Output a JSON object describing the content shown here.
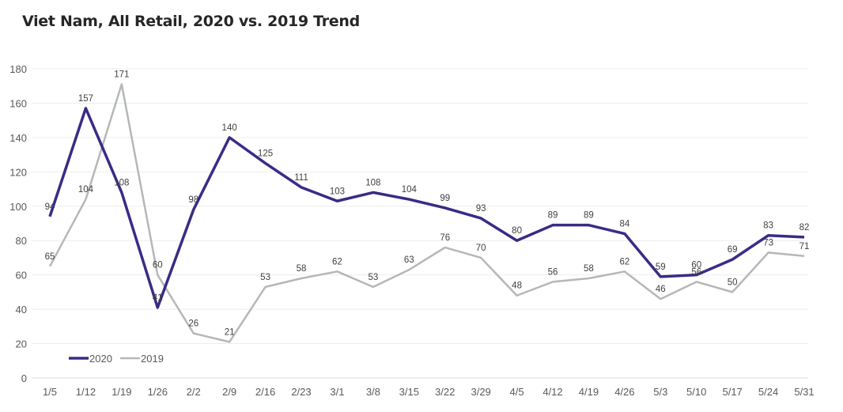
{
  "chart_data": {
    "type": "line",
    "title": "Viet Nam, All Retail, 2020 vs. 2019 Trend",
    "xlabel": "",
    "ylabel": "",
    "categories": [
      "1/5",
      "1/12",
      "1/19",
      "1/26",
      "2/2",
      "2/9",
      "2/16",
      "2/23",
      "3/1",
      "3/8",
      "3/15",
      "3/22",
      "3/29",
      "4/5",
      "4/12",
      "4/19",
      "4/26",
      "5/3",
      "5/10",
      "5/17",
      "5/24",
      "5/31"
    ],
    "ylim": [
      0,
      180
    ],
    "yticks": [
      0,
      20,
      40,
      60,
      80,
      100,
      120,
      140,
      160,
      180
    ],
    "grid": true,
    "legend_position": "bottom-left",
    "series": [
      {
        "name": "2020",
        "color": "#3c2a86",
        "values": [
          94,
          157,
          108,
          41,
          98,
          140,
          125,
          111,
          103,
          108,
          104,
          99,
          93,
          80,
          89,
          89,
          84,
          59,
          60,
          69,
          83,
          82
        ]
      },
      {
        "name": "2019",
        "color": "#b4b8b6",
        "values": [
          65,
          104,
          171,
          60,
          26,
          21,
          53,
          58,
          62,
          53,
          63,
          76,
          70,
          48,
          56,
          58,
          62,
          46,
          56,
          50,
          73,
          71
        ]
      }
    ]
  }
}
